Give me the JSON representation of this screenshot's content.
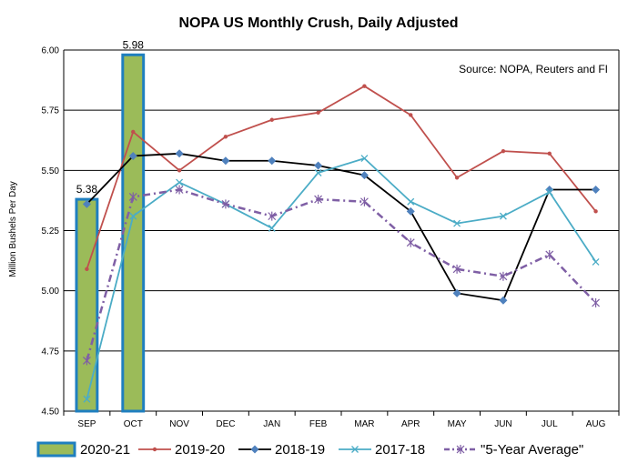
{
  "chart_data": {
    "type": "bar+line",
    "title": "NOPA US Monthly Crush, Daily Adjusted",
    "ylabel": "Million Bushels Per Day",
    "xlabel": "",
    "source_note": "Source: NOPA, Reuters and FI",
    "categories": [
      "SEP",
      "OCT",
      "NOV",
      "DEC",
      "JAN",
      "FEB",
      "MAR",
      "APR",
      "MAY",
      "JUN",
      "JUL",
      "AUG"
    ],
    "ylim": [
      4.5,
      6.0
    ],
    "yticks": [
      "4.50",
      "4.75",
      "5.00",
      "5.25",
      "5.50",
      "5.75",
      "6.00"
    ],
    "ytick_values": [
      4.5,
      4.75,
      5.0,
      5.25,
      5.5,
      5.75,
      6.0
    ],
    "grid": true,
    "legend_position": "bottom",
    "bar_series": {
      "name": "2020-21",
      "values": [
        5.38,
        5.98
      ],
      "labels": [
        "5.38",
        "5.98"
      ],
      "fill": "#9bbb59",
      "stroke": "#1f7fbf"
    },
    "series": [
      {
        "name": "2019-20",
        "values": [
          5.09,
          5.66,
          5.5,
          5.64,
          5.71,
          5.74,
          5.85,
          5.73,
          5.47,
          5.58,
          5.57,
          5.33
        ],
        "color": "#c0504d",
        "marker": "dot",
        "dash": "solid"
      },
      {
        "name": "2018-19",
        "values": [
          5.36,
          5.56,
          5.57,
          5.54,
          5.54,
          5.52,
          5.48,
          5.33,
          4.99,
          4.96,
          5.42,
          5.42
        ],
        "color": "#000000",
        "marker_color": "#4f81bd",
        "marker": "diamond",
        "dash": "solid"
      },
      {
        "name": "2017-18",
        "values": [
          4.55,
          5.31,
          5.45,
          5.36,
          5.26,
          5.49,
          5.55,
          5.37,
          5.28,
          5.31,
          5.41,
          5.12
        ],
        "color": "#4bacc6",
        "marker": "x",
        "dash": "solid"
      },
      {
        "name": "\"5-Year Average\"",
        "values": [
          4.71,
          5.39,
          5.42,
          5.36,
          5.31,
          5.38,
          5.37,
          5.2,
          5.09,
          5.06,
          5.15,
          4.95
        ],
        "color": "#7f5fa5",
        "marker": "asterisk",
        "dash": "dashdot"
      }
    ]
  }
}
